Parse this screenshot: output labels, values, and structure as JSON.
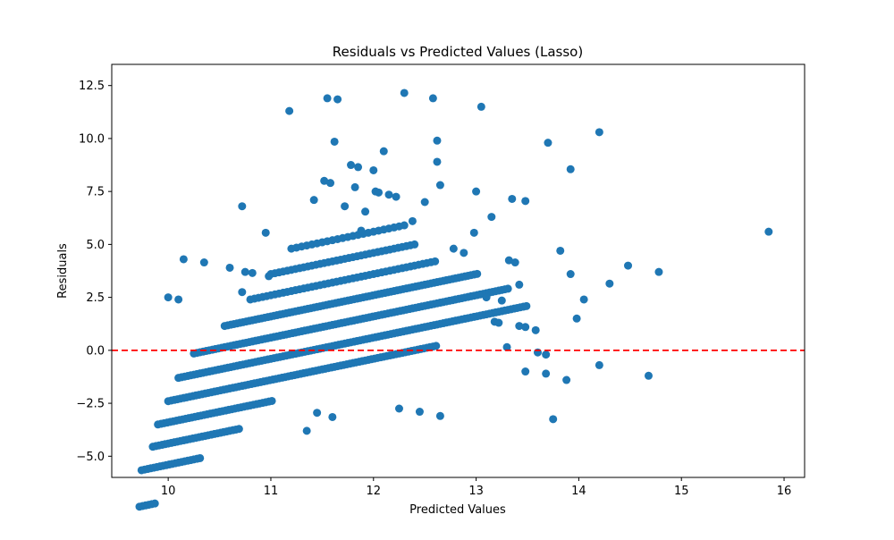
{
  "chart_data": {
    "type": "scatter",
    "title": "Residuals vs Predicted Values (Lasso)",
    "xlabel": "Predicted Values",
    "ylabel": "Residuals",
    "xlim": [
      9.45,
      16.2
    ],
    "ylim": [
      -6.0,
      13.5
    ],
    "xticks": [
      10,
      11,
      12,
      13,
      14,
      15,
      16
    ],
    "yticks": [
      -5.0,
      -2.5,
      0.0,
      2.5,
      5.0,
      7.5,
      10.0,
      12.5
    ],
    "xtick_labels": [
      "10",
      "11",
      "12",
      "13",
      "14",
      "15",
      "16"
    ],
    "ytick_labels": [
      "−5.0",
      "−2.5",
      "0.0",
      "2.5",
      "5.0",
      "7.5",
      "10.0",
      "12.5"
    ],
    "grid": false,
    "point_color": "#1f77b4",
    "reference_line": {
      "y": 0,
      "color": "#ff0000",
      "style": "dashed"
    },
    "bands": [
      {
        "offset": -17.1,
        "x_min": 9.72,
        "x_max": 9.88,
        "step": 0.03
      },
      {
        "offset": -15.4,
        "x_min": 9.74,
        "x_max": 10.3,
        "step": 0.03
      },
      {
        "offset": -14.4,
        "x_min": 9.85,
        "x_max": 10.7,
        "step": 0.03
      },
      {
        "offset": -13.4,
        "x_min": 9.9,
        "x_max": 11.0,
        "step": 0.03
      },
      {
        "offset": -12.4,
        "x_min": 10.0,
        "x_max": 12.6,
        "step": 0.03
      },
      {
        "offset": -11.4,
        "x_min": 10.1,
        "x_max": 13.5,
        "step": 0.03
      },
      {
        "offset": -10.4,
        "x_min": 10.25,
        "x_max": 13.3,
        "step": 0.03
      },
      {
        "offset": -9.4,
        "x_min": 10.55,
        "x_max": 13.0,
        "step": 0.03
      },
      {
        "offset": -8.4,
        "x_min": 10.8,
        "x_max": 12.6,
        "step": 0.04
      },
      {
        "offset": -7.4,
        "x_min": 11.0,
        "x_max": 12.4,
        "step": 0.04
      },
      {
        "offset": -6.4,
        "x_min": 11.2,
        "x_max": 12.3,
        "step": 0.05
      }
    ],
    "extra_points": [
      [
        10.15,
        4.3
      ],
      [
        10.35,
        4.15
      ],
      [
        10.6,
        3.9
      ],
      [
        10.72,
        6.8
      ],
      [
        10.75,
        3.7
      ],
      [
        10.82,
        3.65
      ],
      [
        10.95,
        5.55
      ],
      [
        10.98,
        3.5
      ],
      [
        10.0,
        2.5
      ],
      [
        10.1,
        2.4
      ],
      [
        10.72,
        2.75
      ],
      [
        11.42,
        7.1
      ],
      [
        11.52,
        8.0
      ],
      [
        11.58,
        7.9
      ],
      [
        11.72,
        6.8
      ],
      [
        11.78,
        8.75
      ],
      [
        11.85,
        8.65
      ],
      [
        11.82,
        7.7
      ],
      [
        11.88,
        5.65
      ],
      [
        11.92,
        6.55
      ],
      [
        12.0,
        8.5
      ],
      [
        12.02,
        7.5
      ],
      [
        12.05,
        7.45
      ],
      [
        12.15,
        7.35
      ],
      [
        12.22,
        7.25
      ],
      [
        12.38,
        6.1
      ],
      [
        12.5,
        7.0
      ],
      [
        12.65,
        7.8
      ],
      [
        12.78,
        4.8
      ],
      [
        12.88,
        4.6
      ],
      [
        13.0,
        7.5
      ],
      [
        12.98,
        5.55
      ],
      [
        13.15,
        6.3
      ],
      [
        13.32,
        4.25
      ],
      [
        13.38,
        4.15
      ],
      [
        13.35,
        7.15
      ],
      [
        13.48,
        7.05
      ],
      [
        13.42,
        3.1
      ],
      [
        13.1,
        2.5
      ],
      [
        13.25,
        2.35
      ],
      [
        13.42,
        1.15
      ],
      [
        13.48,
        1.1
      ],
      [
        13.58,
        0.95
      ],
      [
        13.3,
        0.15
      ],
      [
        13.6,
        -0.1
      ],
      [
        13.68,
        -0.2
      ],
      [
        13.48,
        -1.0
      ],
      [
        13.68,
        -1.1
      ],
      [
        13.88,
        -1.4
      ],
      [
        13.75,
        -3.25
      ],
      [
        13.18,
        1.35
      ],
      [
        13.22,
        1.3
      ],
      [
        11.18,
        11.3
      ],
      [
        11.55,
        11.9
      ],
      [
        11.65,
        11.85
      ],
      [
        11.62,
        9.85
      ],
      [
        12.1,
        9.4
      ],
      [
        12.3,
        12.15
      ],
      [
        12.58,
        11.9
      ],
      [
        12.62,
        9.9
      ],
      [
        12.62,
        8.9
      ],
      [
        13.05,
        11.5
      ],
      [
        13.7,
        9.8
      ],
      [
        13.92,
        8.55
      ],
      [
        14.2,
        10.3
      ],
      [
        13.82,
        4.7
      ],
      [
        13.92,
        3.6
      ],
      [
        13.98,
        1.5
      ],
      [
        14.05,
        2.4
      ],
      [
        14.2,
        -0.7
      ],
      [
        14.3,
        3.15
      ],
      [
        14.48,
        4.0
      ],
      [
        14.68,
        -1.2
      ],
      [
        14.78,
        3.7
      ],
      [
        15.85,
        5.6
      ],
      [
        11.35,
        -3.8
      ],
      [
        11.45,
        -2.95
      ],
      [
        11.6,
        -3.15
      ],
      [
        12.45,
        -2.9
      ],
      [
        12.65,
        -3.1
      ],
      [
        12.25,
        -2.75
      ]
    ]
  }
}
